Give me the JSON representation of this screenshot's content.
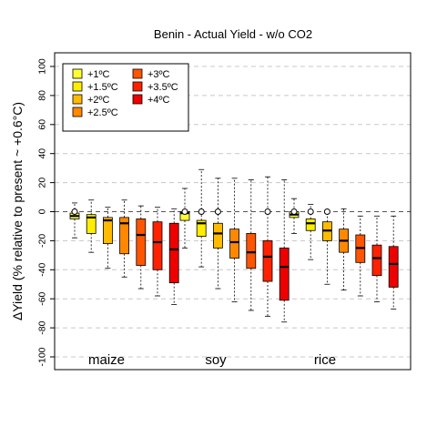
{
  "chart_data": {
    "type": "boxplot",
    "title": "Benin - Actual Yield - w/o CO2",
    "ylabel": "ΔYield (% relative to present ~ +0.6°C)",
    "xlabel": "",
    "ylim": [
      -106,
      106
    ],
    "yticks": [
      -100,
      -80,
      -60,
      -40,
      -20,
      0,
      20,
      40,
      60,
      80,
      100
    ],
    "grid": "horizontal dashed",
    "legend_position": "top-left",
    "groups": [
      "maize",
      "soy",
      "rice"
    ],
    "series": [
      {
        "name": "+1ºC",
        "color": "#ffff33"
      },
      {
        "name": "+1.5ºC",
        "color": "#ffee00"
      },
      {
        "name": "+2ºC",
        "color": "#ffbb00"
      },
      {
        "name": "+2.5ºC",
        "color": "#ff8800"
      },
      {
        "name": "+3ºC",
        "color": "#ff5500"
      },
      {
        "name": "+3.5ºC",
        "color": "#ff2200"
      },
      {
        "name": "+4ºC",
        "color": "#ee0000"
      }
    ],
    "boxes": {
      "maize": [
        {
          "whisker_low": -18,
          "q1": -5,
          "median": -3,
          "q3": -1,
          "whisker_high": 6,
          "mean": 0
        },
        {
          "whisker_low": -28,
          "q1": -15,
          "median": -4,
          "q3": -2,
          "whisker_high": 8
        },
        {
          "whisker_low": -39,
          "q1": -22,
          "median": -6,
          "q3": -4,
          "whisker_high": 3
        },
        {
          "whisker_low": -45,
          "q1": -29,
          "median": -8,
          "q3": -4,
          "whisker_high": 8
        },
        {
          "whisker_low": -53,
          "q1": -37,
          "median": -16,
          "q3": -5,
          "whisker_high": 4
        },
        {
          "whisker_low": -58,
          "q1": -40,
          "median": -21,
          "q3": -7,
          "whisker_high": 3
        },
        {
          "whisker_low": -64,
          "q1": -49,
          "median": -26,
          "q3": -8,
          "whisker_high": 2
        }
      ],
      "soy": [
        {
          "whisker_low": -25,
          "q1": -6,
          "median": -1,
          "q3": 0,
          "whisker_high": 16,
          "mean": 0
        },
        {
          "whisker_low": -38,
          "q1": -17,
          "median": -8,
          "q3": -6,
          "whisker_high": 29,
          "mean": 0
        },
        {
          "whisker_low": -53,
          "q1": -25,
          "median": -15,
          "q3": -8,
          "whisker_high": 23,
          "mean": 0
        },
        {
          "whisker_low": -62,
          "q1": -32,
          "median": -21,
          "q3": -12,
          "whisker_high": 23
        },
        {
          "whisker_low": -68,
          "q1": -39,
          "median": -28,
          "q3": -15,
          "whisker_high": 22
        },
        {
          "whisker_low": -72,
          "q1": -48,
          "median": -31,
          "q3": -20,
          "whisker_high": 24,
          "mean": 0
        },
        {
          "whisker_low": -76,
          "q1": -61,
          "median": -38,
          "q3": -25,
          "whisker_high": 22
        }
      ],
      "rice": [
        {
          "whisker_low": -15,
          "q1": -4,
          "median": -2,
          "q3": 0,
          "whisker_high": 9,
          "mean": 0
        },
        {
          "whisker_low": -33,
          "q1": -13,
          "median": -8,
          "q3": -5,
          "whisker_high": 5,
          "mean": 0
        },
        {
          "whisker_low": -50,
          "q1": -20,
          "median": -13,
          "q3": -7,
          "whisker_high": 1,
          "mean": 0
        },
        {
          "whisker_low": -54,
          "q1": -28,
          "median": -20,
          "q3": -12,
          "whisker_high": 2
        },
        {
          "whisker_low": -58,
          "q1": -35,
          "median": -25,
          "q3": -16,
          "whisker_high": -3
        },
        {
          "whisker_low": -62,
          "q1": -44,
          "median": -32,
          "q3": -23,
          "whisker_high": -3
        },
        {
          "whisker_low": -67,
          "q1": -52,
          "median": -36,
          "q3": -24,
          "whisker_high": -3
        }
      ]
    }
  }
}
